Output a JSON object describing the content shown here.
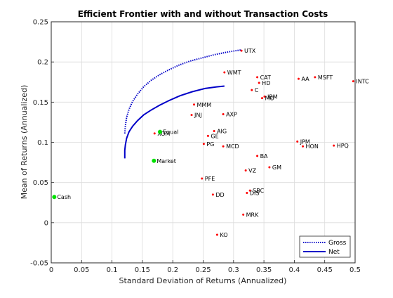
{
  "chart_data": {
    "type": "scatter",
    "title": "Efficient Frontier with and without Transaction Costs",
    "xlabel": "Standard Deviation of Returns (Annualized)",
    "ylabel": "Mean of Returns (Annualized)",
    "xlim": [
      0,
      0.5
    ],
    "ylim": [
      -0.05,
      0.25
    ],
    "xticks": [
      "0",
      "0.05",
      "0.1",
      "0.15",
      "0.2",
      "0.25",
      "0.3",
      "0.35",
      "0.4",
      "0.45",
      "0.5"
    ],
    "yticks": [
      "-0.05",
      "0",
      "0.05",
      "0.1",
      "0.15",
      "0.2",
      "0.25"
    ],
    "grid": true,
    "legend_position": "bottom-right",
    "colors": {
      "frontier": "#0000c8",
      "assets": "#ff0000",
      "benchmarks": "#00e000"
    },
    "series": [
      {
        "name": "Gross",
        "style": "dotted",
        "x": [
          0.121,
          0.122,
          0.124,
          0.128,
          0.134,
          0.142,
          0.152,
          0.164,
          0.178,
          0.193,
          0.21,
          0.228,
          0.248,
          0.268,
          0.288,
          0.303,
          0.313
        ],
        "y": [
          0.111,
          0.121,
          0.131,
          0.141,
          0.151,
          0.16,
          0.169,
          0.177,
          0.184,
          0.19,
          0.196,
          0.201,
          0.205,
          0.209,
          0.212,
          0.214,
          0.215
        ]
      },
      {
        "name": "Net",
        "style": "solid",
        "x": [
          0.121,
          0.121,
          0.122,
          0.124,
          0.128,
          0.134,
          0.142,
          0.152,
          0.164,
          0.178,
          0.194,
          0.212,
          0.232,
          0.253,
          0.272,
          0.285
        ],
        "y": [
          0.08,
          0.09,
          0.097,
          0.105,
          0.113,
          0.12,
          0.127,
          0.134,
          0.14,
          0.146,
          0.152,
          0.158,
          0.163,
          0.167,
          0.169,
          0.17
        ]
      }
    ],
    "assets": [
      {
        "label": "UTX",
        "x": 0.313,
        "y": 0.214
      },
      {
        "label": "WMT",
        "x": 0.285,
        "y": 0.187
      },
      {
        "label": "CAT",
        "x": 0.339,
        "y": 0.181
      },
      {
        "label": "HD",
        "x": 0.342,
        "y": 0.174
      },
      {
        "label": "AA",
        "x": 0.407,
        "y": 0.179
      },
      {
        "label": "MSFT",
        "x": 0.434,
        "y": 0.181
      },
      {
        "label": "INTC",
        "x": 0.497,
        "y": 0.176
      },
      {
        "label": "C",
        "x": 0.33,
        "y": 0.165
      },
      {
        "label": "IBM",
        "x": 0.351,
        "y": 0.157
      },
      {
        "label": "MO",
        "x": 0.347,
        "y": 0.155
      },
      {
        "label": "MMM",
        "x": 0.235,
        "y": 0.147
      },
      {
        "label": "JNJ",
        "x": 0.231,
        "y": 0.134
      },
      {
        "label": "AXP",
        "x": 0.283,
        "y": 0.135
      },
      {
        "label": "AIG",
        "x": 0.268,
        "y": 0.114
      },
      {
        "label": "GE",
        "x": 0.258,
        "y": 0.108
      },
      {
        "label": "PG",
        "x": 0.251,
        "y": 0.098
      },
      {
        "label": "MCD",
        "x": 0.283,
        "y": 0.095
      },
      {
        "label": "JPM",
        "x": 0.405,
        "y": 0.101
      },
      {
        "label": "HON",
        "x": 0.414,
        "y": 0.095
      },
      {
        "label": "HPQ",
        "x": 0.465,
        "y": 0.096
      },
      {
        "label": "BA",
        "x": 0.339,
        "y": 0.083
      },
      {
        "label": "GM",
        "x": 0.359,
        "y": 0.069
      },
      {
        "label": "VZ",
        "x": 0.32,
        "y": 0.065
      },
      {
        "label": "PFE",
        "x": 0.248,
        "y": 0.055
      },
      {
        "label": "SBC",
        "x": 0.327,
        "y": 0.04
      },
      {
        "label": "DIS",
        "x": 0.322,
        "y": 0.037
      },
      {
        "label": "DD",
        "x": 0.266,
        "y": 0.035
      },
      {
        "label": "MRK",
        "x": 0.316,
        "y": 0.01
      },
      {
        "label": "KO",
        "x": 0.273,
        "y": -0.015
      },
      {
        "label": "XOM",
        "x": 0.17,
        "y": 0.111
      }
    ],
    "benchmarks": [
      {
        "label": "Equal",
        "x": 0.179,
        "y": 0.113
      },
      {
        "label": "Market",
        "x": 0.169,
        "y": 0.077
      },
      {
        "label": "Cash",
        "x": 0.005,
        "y": 0.032
      }
    ]
  }
}
